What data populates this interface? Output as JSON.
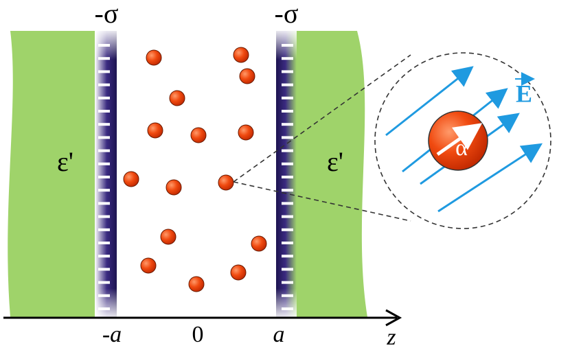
{
  "plates": [
    {
      "charge": "-σ",
      "position": "-a"
    },
    {
      "charge": "-σ",
      "position": "a"
    }
  ],
  "media": [
    {
      "permittivity": "ε'"
    },
    {
      "permittivity": "ε'"
    }
  ],
  "axis": {
    "origin": "0",
    "label": "z"
  },
  "field": {
    "label": "E"
  },
  "particle": {
    "label": "α"
  }
}
